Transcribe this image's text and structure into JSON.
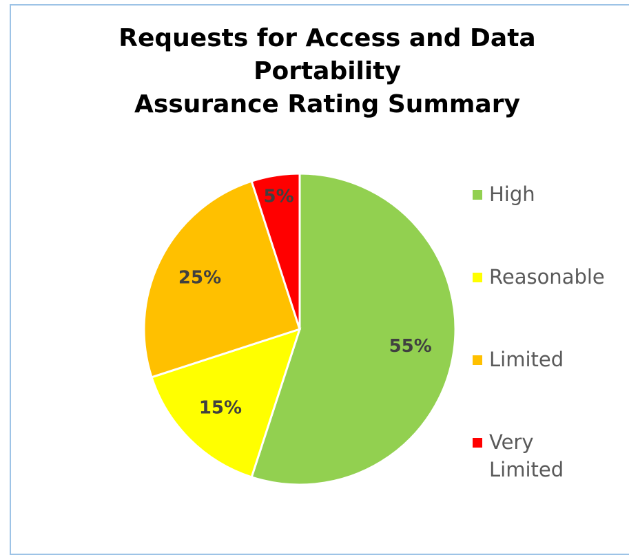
{
  "chart_data": {
    "type": "pie",
    "title": [
      "Requests for Access and Data Portability",
      "Assurance Rating Summary"
    ],
    "categories": [
      "High",
      "Reasonable",
      "Limited",
      "Very Limited"
    ],
    "values": [
      55,
      15,
      25,
      5
    ],
    "value_labels": [
      "55%",
      "15%",
      "25%",
      "5%"
    ],
    "colors": [
      "#92d050",
      "#ffff00",
      "#ffc000",
      "#ff0000"
    ],
    "legend": "right"
  }
}
